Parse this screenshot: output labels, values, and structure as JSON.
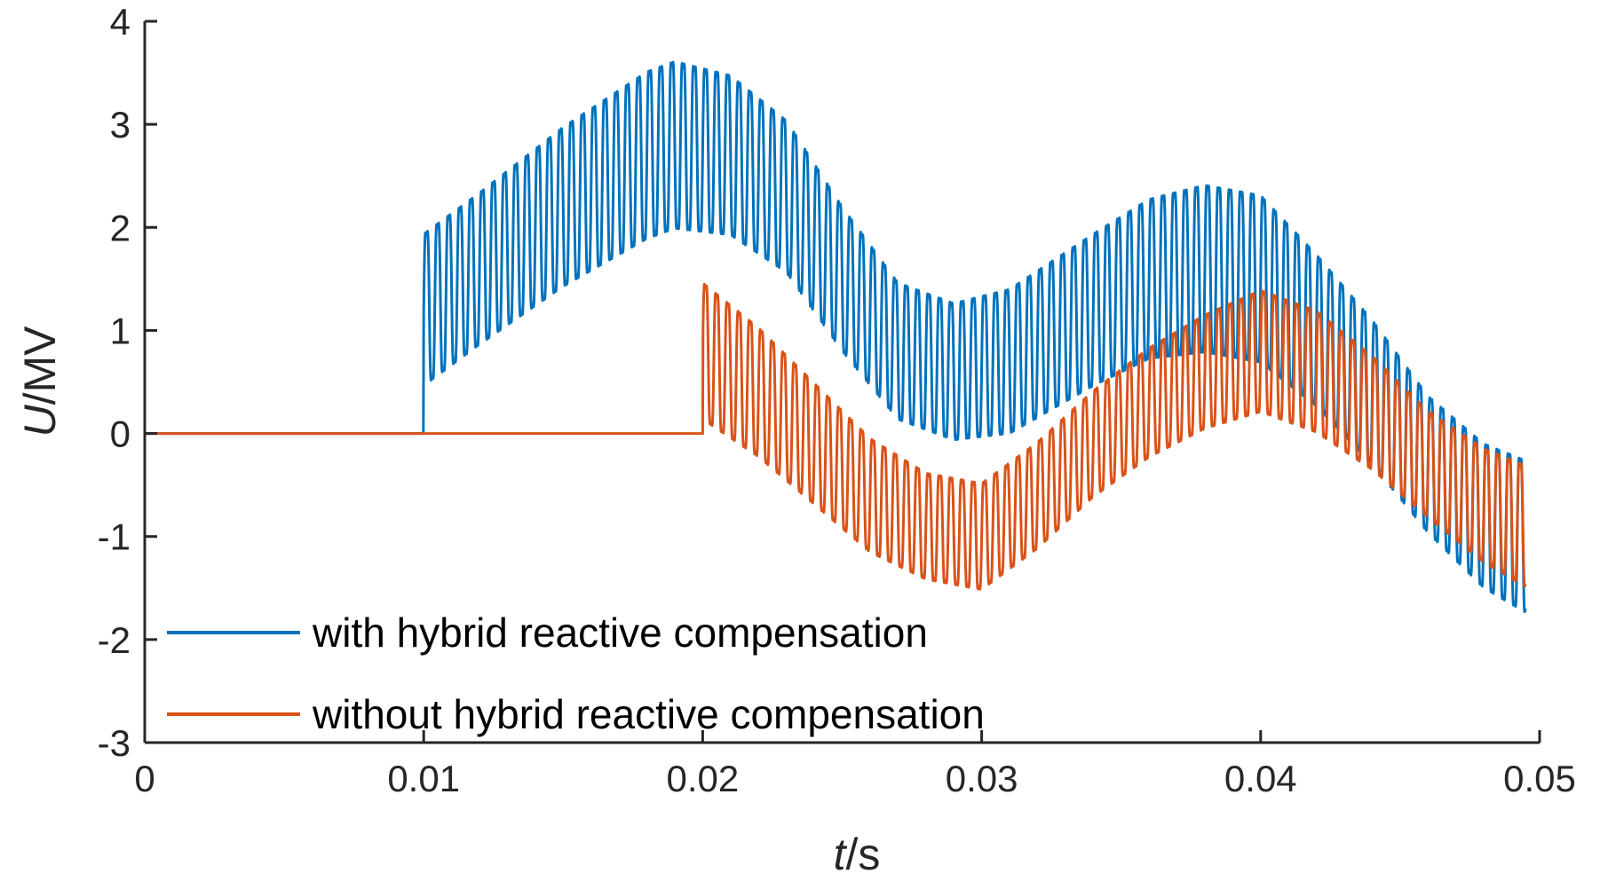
{
  "chart_data": {
    "type": "line",
    "title": "",
    "xlabel_var": "t",
    "xlabel_unit": "/s",
    "ylabel_var": "U",
    "ylabel_unit": "/MV",
    "xlim": [
      0,
      0.05
    ],
    "ylim": [
      -3,
      4
    ],
    "xticks": [
      0,
      0.01,
      0.02,
      0.03,
      0.04,
      0.05
    ],
    "xtick_labels": [
      "0",
      "0.01",
      "0.02",
      "0.03",
      "0.04",
      "0.05"
    ],
    "yticks": [
      -3,
      -2,
      -1,
      0,
      1,
      2,
      3,
      4
    ],
    "ytick_labels": [
      "-3",
      "-2",
      "-1",
      "0",
      "1",
      "2",
      "3",
      "4"
    ],
    "grid": false,
    "legend_position": "bottom-left",
    "series": [
      {
        "name": "with hybrid reactive compensation",
        "color": "#0072BD",
        "start_time": 0.01,
        "ripple_freq_hz": 2500,
        "envelope_t": [
          0,
          0.00999,
          0.01,
          0.012,
          0.015,
          0.018,
          0.019,
          0.021,
          0.023,
          0.025,
          0.027,
          0.029,
          0.031,
          0.034,
          0.036,
          0.038,
          0.04,
          0.042,
          0.044,
          0.046,
          0.048,
          0.0495
        ],
        "envelope_center": [
          0,
          0,
          1.2,
          1.6,
          2.2,
          2.7,
          2.8,
          2.7,
          2.3,
          1.5,
          0.8,
          0.6,
          0.7,
          1.2,
          1.5,
          1.6,
          1.5,
          1.0,
          0.4,
          -0.3,
          -0.8,
          -1.0
        ],
        "envelope_amplitude": [
          0,
          0,
          1.0,
          1.0,
          1.05,
          1.1,
          1.1,
          1.05,
          1.0,
          0.95,
          0.9,
          0.9,
          0.95,
          1.0,
          1.05,
          1.1,
          1.1,
          1.0,
          0.95,
          0.9,
          0.95,
          1.0
        ]
      },
      {
        "name": "without hybrid reactive compensation",
        "color": "#D95319",
        "start_time": 0.02,
        "ripple_freq_hz": 2500,
        "envelope_t": [
          0,
          0.01999,
          0.02,
          0.022,
          0.024,
          0.026,
          0.028,
          0.03,
          0.032,
          0.034,
          0.036,
          0.038,
          0.04,
          0.042,
          0.044,
          0.046,
          0.048,
          0.0495
        ],
        "envelope_center": [
          0,
          0,
          0.8,
          0.4,
          -0.1,
          -0.6,
          -0.9,
          -1.0,
          -0.6,
          -0.1,
          0.3,
          0.6,
          0.8,
          0.6,
          0.2,
          -0.3,
          -0.7,
          -0.9
        ],
        "envelope_amplitude": [
          0,
          0,
          0.9,
          0.85,
          0.8,
          0.75,
          0.7,
          0.7,
          0.7,
          0.7,
          0.72,
          0.75,
          0.8,
          0.8,
          0.75,
          0.7,
          0.75,
          0.8
        ]
      }
    ]
  }
}
